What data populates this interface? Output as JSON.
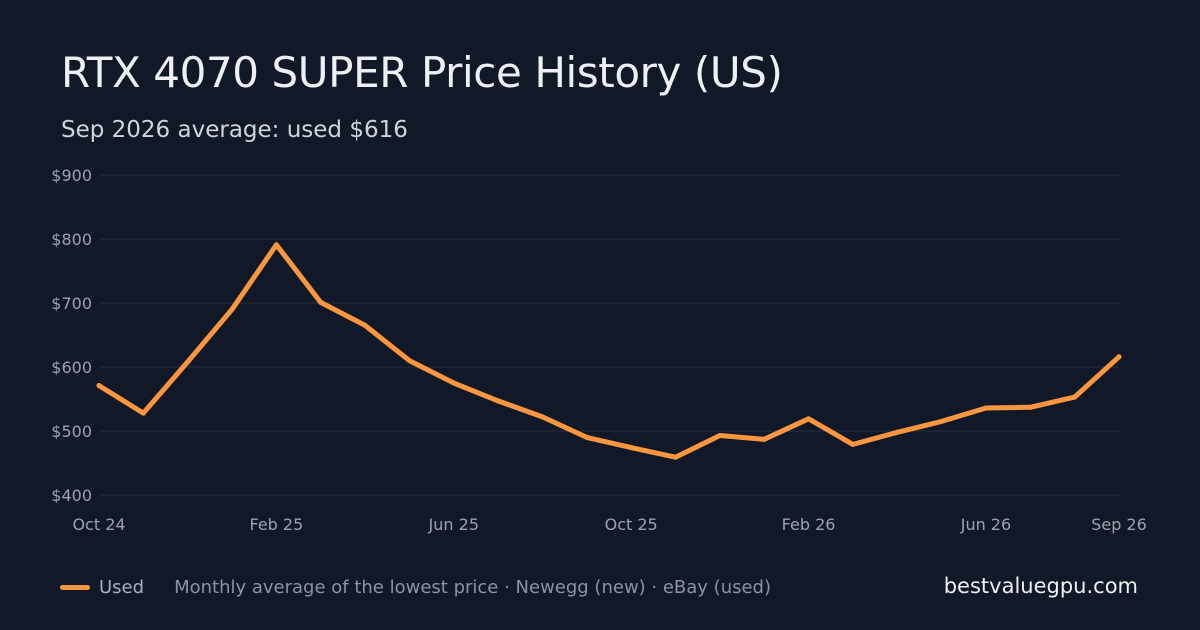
{
  "title": "RTX 4070 SUPER Price History (US)",
  "subtitle": "Sep 2026 average: used $616",
  "brand": "bestvaluegpu.com",
  "legend": {
    "label": "Used",
    "note": "Monthly average of the lowest price · Newegg (new) · eBay (used)"
  },
  "colors": {
    "background": "#111827",
    "grid": "#283142",
    "axis_text": "#9ca3af",
    "used_line": "#fb9640"
  },
  "chart_data": {
    "type": "line",
    "title": "RTX 4070 SUPER Price History (US)",
    "subtitle": "Sep 2026 average: used $616",
    "xlabel": "",
    "ylabel": "",
    "ylim": [
      400,
      900
    ],
    "y_ticks": [
      400,
      500,
      600,
      700,
      800,
      900
    ],
    "y_tick_labels": [
      "$400",
      "$500",
      "$600",
      "$700",
      "$800",
      "$900"
    ],
    "x_tick_labels": [
      "Oct 24",
      "Feb 25",
      "Jun 25",
      "Oct 25",
      "Feb 26",
      "Jun 26",
      "Sep 26"
    ],
    "x_tick_indices": [
      0,
      4,
      8,
      12,
      16,
      20,
      23
    ],
    "grid": true,
    "legend_position": "bottom-left",
    "categories": [
      "Oct 24",
      "Nov 24",
      "Dec 24",
      "Jan 25",
      "Feb 25",
      "Mar 25",
      "Apr 25",
      "May 25",
      "Jun 25",
      "Jul 25",
      "Aug 25",
      "Sep 25",
      "Oct 25",
      "Nov 25",
      "Dec 25",
      "Jan 26",
      "Feb 26",
      "Mar 26",
      "Apr 26",
      "May 26",
      "Jun 26",
      "Jul 26",
      "Aug 26",
      "Sep 26"
    ],
    "series": [
      {
        "name": "Used",
        "color": "#fb9640",
        "values": [
          571,
          528,
          608,
          690,
          791,
          701,
          665,
          610,
          575,
          547,
          522,
          490,
          474,
          459,
          493,
          487,
          519,
          479,
          498,
          515,
          536,
          537,
          553,
          616
        ]
      }
    ]
  }
}
